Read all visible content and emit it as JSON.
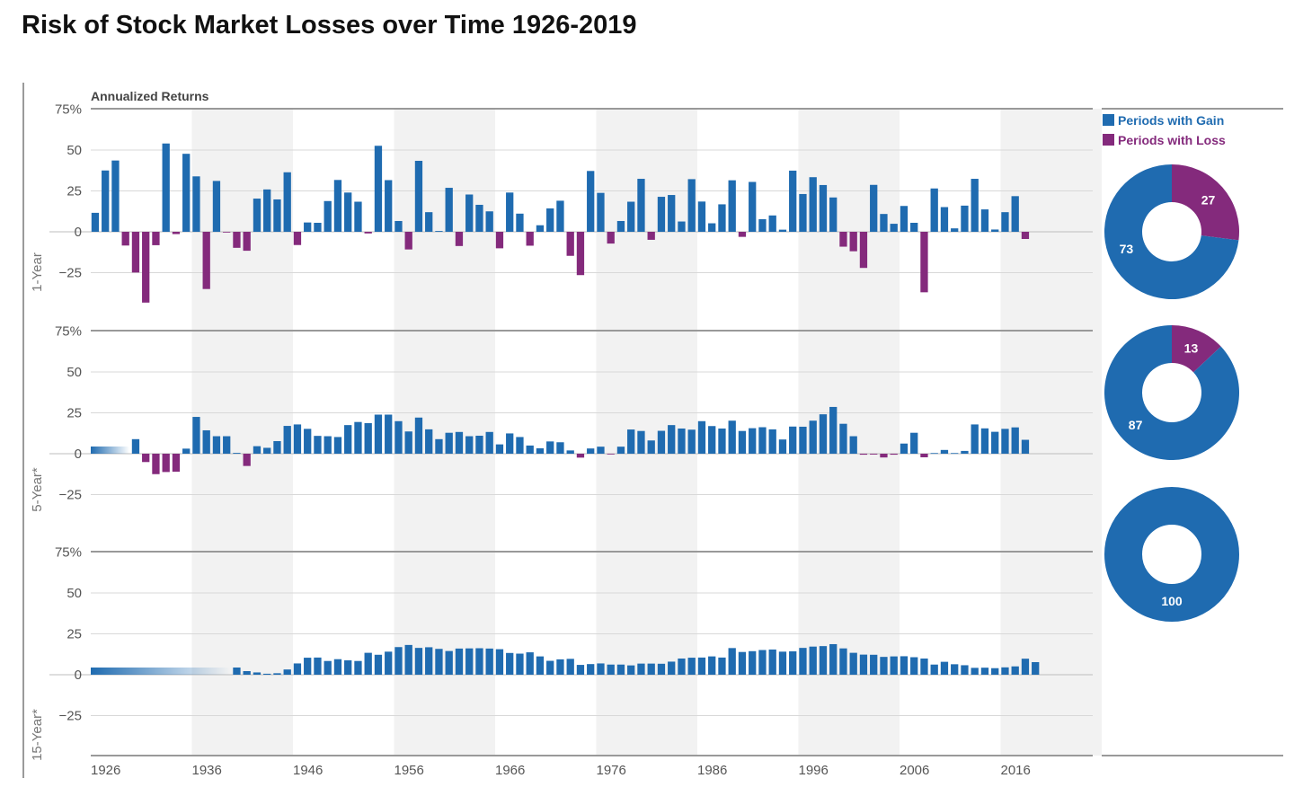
{
  "title": "Risk of Stock Market Losses over Time 1926-2019",
  "subtitle": "Annualized Returns",
  "colors": {
    "gain": "#1f6bb0",
    "loss": "#842a7c",
    "band": "#f2f2f2",
    "grid": "#d8d8d8",
    "axis": "#aaaaaa"
  },
  "legend": {
    "gain": "Periods with Gain",
    "loss": "Periods with Loss"
  },
  "chart_data": {
    "type": "bar",
    "x_ticks": [
      "1926",
      "1936",
      "1946",
      "1956",
      "1966",
      "1976",
      "1986",
      "1996",
      "2006",
      "2016"
    ],
    "y_ticks": [
      "75%",
      "50",
      "25",
      "0",
      "−25"
    ],
    "ylim": [
      -40,
      78
    ],
    "panels": [
      {
        "label": "1-Year",
        "first_year": 1926,
        "values": [
          11.6,
          37.5,
          43.6,
          -8.4,
          -24.9,
          -43.3,
          -8.2,
          54.0,
          -1.4,
          47.7,
          33.9,
          -35.0,
          31.1,
          -0.4,
          -9.8,
          -11.6,
          20.3,
          25.9,
          19.8,
          36.4,
          -8.1,
          5.7,
          5.5,
          18.8,
          31.7,
          24.0,
          18.4,
          -1.0,
          52.6,
          31.6,
          6.6,
          -10.8,
          43.4,
          12.0,
          0.5,
          26.9,
          -8.7,
          22.8,
          16.5,
          12.5,
          -10.1,
          24.0,
          11.1,
          -8.5,
          4.0,
          14.3,
          19.0,
          -14.7,
          -26.5,
          37.2,
          23.8,
          -7.2,
          6.6,
          18.4,
          32.4,
          -4.9,
          21.4,
          22.5,
          6.3,
          32.2,
          18.5,
          5.2,
          16.8,
          31.5,
          -3.1,
          30.5,
          7.7,
          10.0,
          1.3,
          37.4,
          23.1,
          33.4,
          28.6,
          21.0,
          -9.1,
          -11.9,
          -22.1,
          28.7,
          10.9,
          4.9,
          15.8,
          5.5,
          -37.0,
          26.5,
          15.1,
          2.1,
          16.0,
          32.4,
          13.7,
          1.4,
          12.0,
          21.8,
          -4.4
        ],
        "donut": {
          "gain": 73,
          "loss": 27
        }
      },
      {
        "label": "5-Year*",
        "first_year": 1930,
        "values": [
          8.9,
          -5.1,
          -12.5,
          -11.2,
          -11.0,
          3.1,
          22.5,
          14.3,
          10.7,
          10.7,
          0.5,
          -7.5,
          4.6,
          3.6,
          7.7,
          17.0,
          17.9,
          15.2,
          10.9,
          10.7,
          10.2,
          17.5,
          19.4,
          18.7,
          23.9,
          23.9,
          19.9,
          13.6,
          22.1,
          14.9,
          8.9,
          12.8,
          13.3,
          10.7,
          11.0,
          13.3,
          5.7,
          12.4,
          10.2,
          5.0,
          3.3,
          7.5,
          7.0,
          2.0,
          -2.4,
          3.2,
          4.3,
          -0.2,
          4.3,
          14.8,
          13.9,
          8.1,
          14.0,
          17.5,
          15.4,
          14.7,
          19.9,
          16.9,
          15.4,
          20.2,
          13.9,
          15.6,
          16.2,
          14.9,
          8.7,
          16.6,
          16.5,
          20.2,
          24.1,
          28.6,
          18.3,
          10.7,
          -0.6,
          -0.5,
          -2.3,
          -0.6,
          6.2,
          12.8,
          -2.2,
          0.4,
          2.3,
          0.4,
          1.7,
          17.9,
          15.5,
          13.4,
          15.2,
          16.1,
          8.5
        ],
        "donut": {
          "gain": 87,
          "loss": 13
        }
      },
      {
        "label": "15-Year*",
        "first_year": 1940,
        "values": [
          4.4,
          2.2,
          1.4,
          0.6,
          0.9,
          3.2,
          6.9,
          10.4,
          10.5,
          8.4,
          9.5,
          8.8,
          8.4,
          13.4,
          12.2,
          14.1,
          16.9,
          18.2,
          16.4,
          16.8,
          15.8,
          14.5,
          16.0,
          16.1,
          16.2,
          16.0,
          15.6,
          13.3,
          12.9,
          13.7,
          11.2,
          8.5,
          9.4,
          9.7,
          6.0,
          6.5,
          6.9,
          6.2,
          6.2,
          5.7,
          6.8,
          6.8,
          6.7,
          8.0,
          9.9,
          10.4,
          10.5,
          11.2,
          10.5,
          16.3,
          13.9,
          14.4,
          15.1,
          15.4,
          14.1,
          14.3,
          16.4,
          17.2,
          17.5,
          18.7,
          16.1,
          13.4,
          12.3,
          12.2,
          10.9,
          11.2,
          11.3,
          10.7,
          9.9,
          6.2,
          7.9,
          6.4,
          5.8,
          4.2,
          4.3,
          4.0,
          4.5,
          5.1,
          9.8,
          7.7
        ],
        "donut": {
          "gain": 100,
          "loss": 0
        }
      }
    ]
  }
}
